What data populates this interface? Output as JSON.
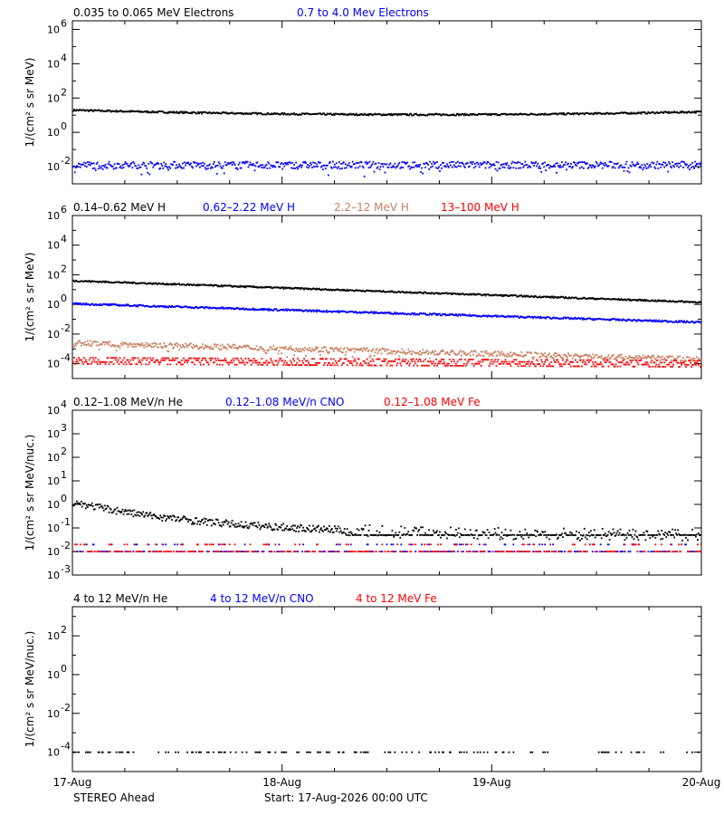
{
  "colors": {
    "black": "#000000",
    "blue": "#0000ff",
    "tan": "#c88060",
    "red": "#ff0000"
  },
  "footer": {
    "spacecraft": "STEREO Ahead",
    "start": "Start: 17-Aug-2026 00:00 UTC"
  },
  "chart_data": [
    {
      "type": "scatter",
      "ylabel": "1/(cm² s sr MeV)",
      "yscale": "log",
      "ylim_exp": [
        -3,
        6.5
      ],
      "ytick_exps": [
        -2,
        0,
        2,
        4,
        6
      ],
      "xlim_days": [
        0,
        3
      ],
      "series": [
        {
          "name": "0.035 to 0.065 MeV Electrons",
          "color": "black",
          "model": "line",
          "start": 1.3,
          "end": 1.2,
          "dip": 0.9,
          "jitter": 0.05
        },
        {
          "name": "0.7 to 4.0 Mev Electrons",
          "color": "blue",
          "model": "scatter",
          "start": -1.9,
          "end": -1.9,
          "dip": -1.9,
          "jitter": 0.2
        }
      ]
    },
    {
      "type": "scatter",
      "ylabel": "1/(cm² s sr MeV)",
      "yscale": "log",
      "ylim_exp": [
        -5,
        6
      ],
      "ytick_exps": [
        -4,
        -2,
        0,
        2,
        4,
        6
      ],
      "xlim_days": [
        0,
        3
      ],
      "series": [
        {
          "name": "0.14–0.62 MeV H",
          "color": "black",
          "model": "line",
          "start": 1.6,
          "end": 0.15,
          "jitter": 0.05
        },
        {
          "name": "0.62–2.22 MeV H",
          "color": "blue",
          "model": "line",
          "start": 0.05,
          "end": -1.2,
          "jitter": 0.06
        },
        {
          "name": "2.2–12 MeV H",
          "color": "tan",
          "model": "scatter",
          "start": -2.6,
          "end": -3.7,
          "jitter": 0.18
        },
        {
          "name": "13–100 MeV H",
          "color": "red",
          "model": "band",
          "start": -3.8,
          "end": -4.0,
          "jitter": 0.28
        }
      ]
    },
    {
      "type": "scatter",
      "ylabel": "1/(cm² s sr MeV/nuc.)",
      "yscale": "log",
      "ylim_exp": [
        -3,
        4
      ],
      "ytick_exps": [
        -3,
        -2,
        -1,
        0,
        1,
        2,
        3,
        4
      ],
      "xlim_days": [
        0,
        3
      ],
      "series": [
        {
          "name": "0.12–1.08 MeV/n He",
          "color": "black",
          "model": "decay",
          "start": 0.1,
          "end": -1.3,
          "jitter": 0.15
        },
        {
          "name": "0.12–1.08 MeV/n CNO",
          "color": "blue",
          "model": "floor",
          "start": -2.0,
          "end": -2.0,
          "jitter": 0.15
        },
        {
          "name": "0.12–1.08 MeV Fe",
          "color": "red",
          "model": "floor",
          "start": -2.0,
          "end": -2.0,
          "jitter": 0.02
        }
      ]
    },
    {
      "type": "scatter",
      "ylabel": "1/(cm² s sr MeV/nuc.)",
      "yscale": "log",
      "ylim_exp": [
        -5,
        3.5
      ],
      "ytick_exps": [
        -4,
        -2,
        0,
        2
      ],
      "xlim_days": [
        0,
        3
      ],
      "xtick_labels": [
        "17-Aug",
        "18-Aug",
        "19-Aug",
        "20-Aug"
      ],
      "series": [
        {
          "name": "4 to 12 MeV/n He",
          "color": "black",
          "model": "sparse",
          "start": -4.0,
          "end": -4.0,
          "jitter": 0.05
        },
        {
          "name": "4 to 12 MeV/n CNO",
          "color": "blue",
          "model": "none",
          "start": -4.0,
          "end": -4.0,
          "jitter": 0
        },
        {
          "name": "4 to 12 MeV Fe",
          "color": "red",
          "model": "none",
          "start": -4.0,
          "end": -4.0,
          "jitter": 0
        }
      ]
    }
  ]
}
